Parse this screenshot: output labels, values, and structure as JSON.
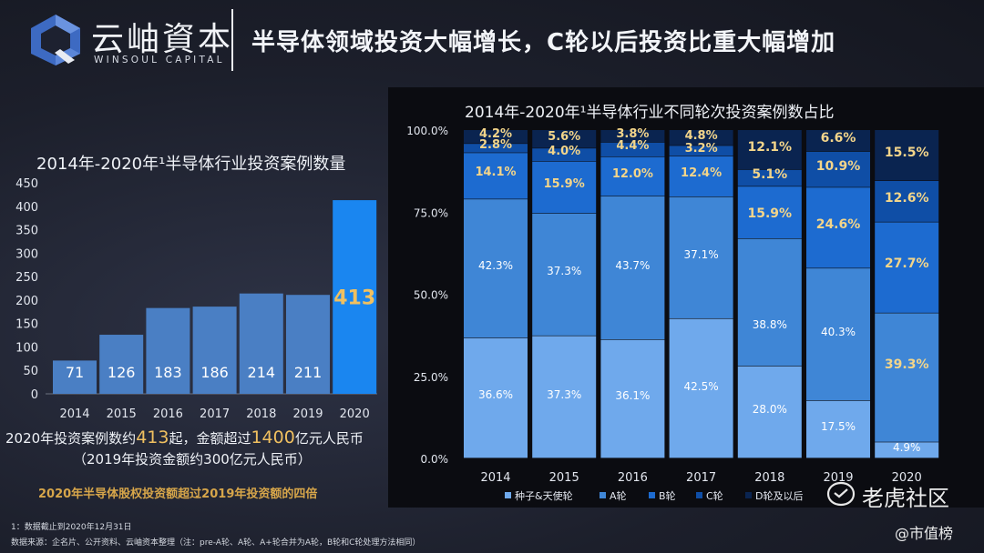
{
  "header": {
    "logo_cn": "云岫資本",
    "logo_en": "WINSOUL CAPITAL",
    "headline": "半导体领域投资大幅增长，C轮以后投资比重大幅增加"
  },
  "left": {
    "title": "2014年-2020年¹半导体行业投资案例数量",
    "note_prefix": "2020年投资案例数约",
    "note_count": "413",
    "note_mid": "起，金额超过",
    "note_amount": "1400",
    "note_suffix": "亿元人民币",
    "note2": "（2019年投资金额约300亿元人民币）",
    "note3": "2020年半导体股权投资额超过2019年投资额的四倍"
  },
  "right": {
    "title": "2014年-2020年¹半导体行业不同轮次投资案例数占比"
  },
  "footer": {
    "note1": "1：数据截止到2020年12月31日",
    "note2": "数据来源：企名片、公开资料、云岫资本整理（注：pre-A轮、A轮、A+轮合并为A轮，B轮和C轮处理方法相同）",
    "watermark1": "老虎社区",
    "watermark2": "@市值榜"
  },
  "colors": {
    "bar": "#4a7fc4",
    "bar_highlight": "#1a86f0",
    "seed": "#6fa9ec",
    "a_round": "#3f86d6",
    "b_round": "#1d6bd0",
    "c_round": "#0f4ea6",
    "d_round": "#0a2450",
    "highlight_text": "#f0c060"
  },
  "chart_data": [
    {
      "type": "bar",
      "title": "2014年-2020年¹半导体行业投资案例数量",
      "categories": [
        "2014",
        "2015",
        "2016",
        "2017",
        "2018",
        "2019",
        "2020"
      ],
      "values": [
        71,
        126,
        183,
        186,
        214,
        211,
        413
      ],
      "ylim": [
        0,
        450
      ],
      "yticks": [
        0,
        50,
        100,
        150,
        200,
        250,
        300,
        350,
        400,
        450
      ],
      "data_labels": [
        "71",
        "126",
        "183",
        "186",
        "214",
        "211",
        "413"
      ],
      "highlight_index": 6
    },
    {
      "type": "bar",
      "stacked": true,
      "normalized": true,
      "title": "2014年-2020年¹半导体行业不同轮次投资案例数占比",
      "categories": [
        "2014",
        "2015",
        "2016",
        "2017",
        "2018",
        "2019",
        "2020"
      ],
      "yticks": [
        "0.0%",
        "25.0%",
        "50.0%",
        "75.0%",
        "100.0%"
      ],
      "legend_position": "bottom",
      "series": [
        {
          "name": "种子&天使轮",
          "values": [
            36.6,
            37.3,
            36.1,
            42.5,
            28.0,
            17.5,
            4.9
          ],
          "labels": [
            "36.6%",
            "37.3%",
            "36.1%",
            "42.5%",
            "28.0%",
            "17.5%",
            "4.9%"
          ]
        },
        {
          "name": "A轮",
          "values": [
            42.3,
            37.3,
            43.7,
            37.1,
            38.8,
            40.3,
            39.3
          ],
          "labels": [
            "42.3%",
            "37.3%",
            "43.7%",
            "37.1%",
            "38.8%",
            "40.3%",
            "39.3%"
          ]
        },
        {
          "name": "B轮",
          "values": [
            14.1,
            15.9,
            12.0,
            12.4,
            15.9,
            24.6,
            27.7
          ],
          "labels": [
            "14.1%",
            "15.9%",
            "12.0%",
            "12.4%",
            "15.9%",
            "24.6%",
            "27.7%"
          ]
        },
        {
          "name": "C轮",
          "values": [
            2.8,
            4.0,
            4.4,
            3.2,
            5.1,
            10.9,
            12.6
          ],
          "labels": [
            "2.8%",
            "4.0%",
            "4.4%",
            "3.2%",
            "5.1%",
            "10.9%",
            "12.6%"
          ]
        },
        {
          "name": "D轮及以后",
          "values": [
            4.2,
            5.6,
            3.8,
            4.8,
            12.1,
            6.6,
            15.5
          ],
          "labels": [
            "4.2%",
            "5.6%",
            "3.8%",
            "4.8%",
            "12.1%",
            "6.6%",
            "15.5%"
          ]
        }
      ]
    }
  ]
}
